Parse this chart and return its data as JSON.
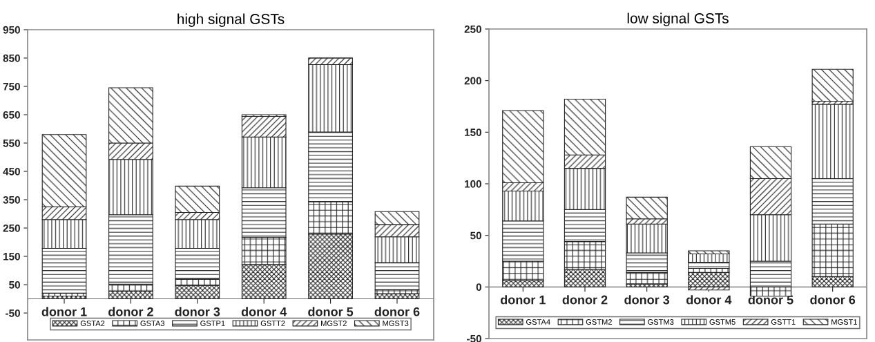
{
  "chart_data": [
    {
      "type": "bar",
      "title": "high signal GSTs",
      "stacked": true,
      "legend": "bottom",
      "grid": false,
      "categories": [
        "donor 1",
        "donor 2",
        "donor 3",
        "donor 4",
        "donor 5",
        "donor 6"
      ],
      "ylim": [
        -145,
        950
      ],
      "yticks": [
        -50,
        50,
        150,
        250,
        350,
        450,
        550,
        650,
        750,
        850,
        950
      ],
      "series": [
        {
          "name": "GSTA2",
          "color": "#222222",
          "values": [
            10,
            27,
            47,
            121,
            229,
            18
          ]
        },
        {
          "name": "GSTA3",
          "color": "#222222",
          "values": [
            10,
            25,
            23,
            96,
            114,
            14
          ]
        },
        {
          "name": "GSTP1",
          "color": "#222222",
          "values": [
            158,
            245,
            108,
            175,
            246,
            96
          ]
        },
        {
          "name": "GSTT2",
          "color": "#222222",
          "values": [
            102,
            195,
            102,
            179,
            238,
            91
          ]
        },
        {
          "name": "MGST2",
          "color": "#222222",
          "values": [
            45,
            58,
            25,
            73,
            23,
            43
          ]
        },
        {
          "name": "MGST3",
          "color": "#222222",
          "values": [
            255,
            195,
            93,
            6,
            0,
            46
          ]
        }
      ]
    },
    {
      "type": "bar",
      "title": "low signal GSTs",
      "stacked": true,
      "legend": "bottom",
      "grid": false,
      "categories": [
        "donor 1",
        "donor 2",
        "donor 3",
        "donor 4",
        "donor 5",
        "donor 6"
      ],
      "ylim": [
        -50,
        250
      ],
      "yticks": [
        -50,
        0,
        50,
        100,
        150,
        200,
        250
      ],
      "series": [
        {
          "name": "GSTA4",
          "color": "#222222",
          "values": [
            6,
            17,
            3,
            14,
            0,
            10
          ]
        },
        {
          "name": "GSTM2",
          "color": "#222222",
          "values": [
            19,
            27,
            11,
            4,
            -9,
            51
          ]
        },
        {
          "name": "GSTM3",
          "color": "#222222",
          "values": [
            39,
            31,
            19,
            6,
            25,
            44
          ]
        },
        {
          "name": "GSTM5",
          "color": "#222222",
          "values": [
            29,
            40,
            28,
            8,
            45,
            72
          ]
        },
        {
          "name": "GSTT1",
          "color": "#222222",
          "values": [
            8,
            13,
            5,
            -3,
            35,
            3
          ]
        },
        {
          "name": "MGST1",
          "color": "#222222",
          "values": [
            70,
            54,
            21,
            3,
            31,
            31
          ]
        }
      ]
    }
  ]
}
